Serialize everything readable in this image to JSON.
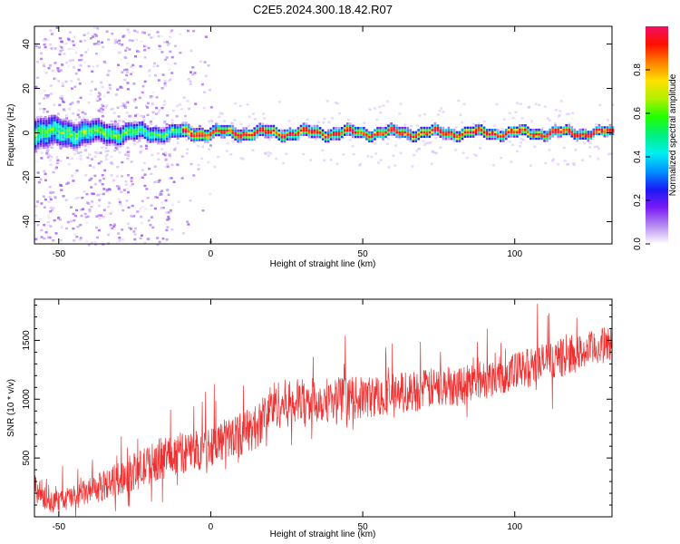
{
  "figure": {
    "title": "C2E5.2024.300.18.42.R07"
  },
  "chart_data": [
    {
      "type": "heatmap",
      "name": "spectrogram",
      "xlabel": "Height of straight line (km)",
      "ylabel": "Frequency (Hz)",
      "xlim": [
        -58,
        132
      ],
      "ylim": [
        -50,
        48
      ],
      "xticks": [
        -50,
        0,
        50,
        100
      ],
      "yticks": [
        -40,
        -20,
        0,
        20,
        40
      ],
      "colorbar": {
        "label": "Normalized spectral amplitude",
        "range": [
          0,
          1
        ],
        "ticks": [
          "0.0",
          "0.2",
          "0.4",
          "0.6",
          "0.8"
        ],
        "colors": [
          "#ffffff",
          "#b68cf0",
          "#7a1af5",
          "#1a1af5",
          "#0090ff",
          "#00f0f0",
          "#00f080",
          "#20ff00",
          "#b0f000",
          "#ffe000",
          "#ff8000",
          "#ff1000",
          "#f01060"
        ]
      },
      "description_rows": {
        "center_frequency_hz": 0,
        "band_halfwidth_hz": [
          8,
          6,
          4,
          3,
          2.5
        ],
        "band_halfwidth_at_km": [
          -58,
          -40,
          -20,
          0,
          132
        ]
      }
    },
    {
      "type": "line",
      "name": "snr",
      "xlabel": "Height of straight line (km)",
      "ylabel": "SNR (10 * v/v)",
      "xlim": [
        -58,
        132
      ],
      "ylim": [
        0,
        1850
      ],
      "xticks": [
        -50,
        0,
        50,
        100
      ],
      "yticks": [
        500,
        1000,
        1500
      ],
      "color": "#f03030",
      "trend_x": [
        -58,
        -52,
        -45,
        -38,
        -30,
        -22,
        -15,
        -5,
        5,
        15,
        20,
        30,
        40,
        50,
        60,
        70,
        80,
        90,
        100,
        110,
        120,
        132
      ],
      "trend_y": [
        250,
        120,
        170,
        230,
        330,
        420,
        520,
        560,
        660,
        760,
        950,
        980,
        1000,
        1010,
        1050,
        1080,
        1120,
        1170,
        1230,
        1320,
        1380,
        1480
      ],
      "spread": [
        230,
        150,
        180,
        200,
        250,
        280,
        300,
        300,
        300,
        320,
        350,
        330,
        320,
        300,
        300,
        290,
        290,
        280,
        280,
        280,
        260,
        260
      ]
    }
  ]
}
